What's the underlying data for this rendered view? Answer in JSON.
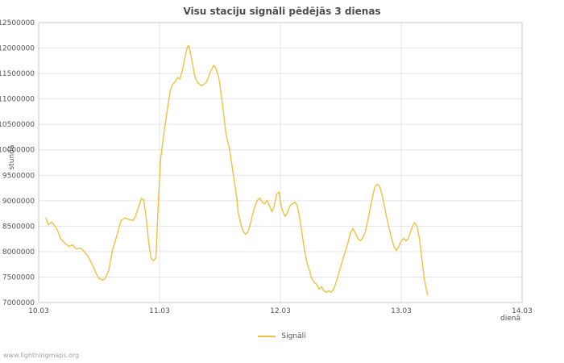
{
  "title": "Visu staciju signāli pēdējās 3 dienas",
  "watermark": "www.lightningmaps.org",
  "legend": {
    "label": "Signāli"
  },
  "chart_data": {
    "type": "line",
    "title": "Visu staciju signāli pēdējās 3 dienas",
    "xlabel": "dienā",
    "ylabel": "stundā",
    "xlim": [
      10.03,
      14.03
    ],
    "ylim": [
      7000000,
      12500000
    ],
    "y_tick_step": 500000,
    "x_ticks": [
      {
        "value": 10.03,
        "label": "10.03"
      },
      {
        "value": 11.03,
        "label": "11.03"
      },
      {
        "value": 12.03,
        "label": "12.03"
      },
      {
        "value": 13.03,
        "label": "13.03"
      },
      {
        "value": 14.03,
        "label": "14.03"
      }
    ],
    "grid": true,
    "legend_position": "bottom-center",
    "colors": {
      "line": "#edc240",
      "grid": "#e5e5e5",
      "border": "#c8c8c8",
      "text": "#545454"
    },
    "series": [
      {
        "name": "Signāli",
        "color": "#edc240",
        "points": [
          [
            10.09,
            8660000
          ],
          [
            10.11,
            8530000
          ],
          [
            10.14,
            8580000
          ],
          [
            10.18,
            8450000
          ],
          [
            10.21,
            8260000
          ],
          [
            10.24,
            8180000
          ],
          [
            10.28,
            8100000
          ],
          [
            10.31,
            8130000
          ],
          [
            10.34,
            8050000
          ],
          [
            10.38,
            8070000
          ],
          [
            10.41,
            7990000
          ],
          [
            10.44,
            7900000
          ],
          [
            10.48,
            7710000
          ],
          [
            10.51,
            7550000
          ],
          [
            10.53,
            7470000
          ],
          [
            10.56,
            7440000
          ],
          [
            10.58,
            7470000
          ],
          [
            10.61,
            7630000
          ],
          [
            10.64,
            8020000
          ],
          [
            10.68,
            8340000
          ],
          [
            10.71,
            8610000
          ],
          [
            10.74,
            8660000
          ],
          [
            10.78,
            8630000
          ],
          [
            10.81,
            8610000
          ],
          [
            10.83,
            8690000
          ],
          [
            10.86,
            8900000
          ],
          [
            10.88,
            9050000
          ],
          [
            10.9,
            9010000
          ],
          [
            10.92,
            8660000
          ],
          [
            10.94,
            8190000
          ],
          [
            10.96,
            7870000
          ],
          [
            10.98,
            7820000
          ],
          [
            11.0,
            7870000
          ],
          [
            11.02,
            8970000
          ],
          [
            11.04,
            9840000
          ],
          [
            11.07,
            10390000
          ],
          [
            11.1,
            10870000
          ],
          [
            11.12,
            11180000
          ],
          [
            11.14,
            11290000
          ],
          [
            11.16,
            11340000
          ],
          [
            11.18,
            11420000
          ],
          [
            11.2,
            11390000
          ],
          [
            11.22,
            11580000
          ],
          [
            11.24,
            11810000
          ],
          [
            11.26,
            12020000
          ],
          [
            11.27,
            12050000
          ],
          [
            11.28,
            11970000
          ],
          [
            11.3,
            11730000
          ],
          [
            11.32,
            11460000
          ],
          [
            11.34,
            11340000
          ],
          [
            11.36,
            11290000
          ],
          [
            11.38,
            11260000
          ],
          [
            11.4,
            11290000
          ],
          [
            11.42,
            11340000
          ],
          [
            11.44,
            11460000
          ],
          [
            11.46,
            11580000
          ],
          [
            11.48,
            11660000
          ],
          [
            11.5,
            11580000
          ],
          [
            11.52,
            11420000
          ],
          [
            11.54,
            11100000
          ],
          [
            11.56,
            10710000
          ],
          [
            11.58,
            10310000
          ],
          [
            11.61,
            10000000
          ],
          [
            11.63,
            9680000
          ],
          [
            11.65,
            9360000
          ],
          [
            11.67,
            9050000
          ],
          [
            11.68,
            8780000
          ],
          [
            11.7,
            8570000
          ],
          [
            11.72,
            8410000
          ],
          [
            11.74,
            8340000
          ],
          [
            11.76,
            8380000
          ],
          [
            11.78,
            8530000
          ],
          [
            11.8,
            8730000
          ],
          [
            11.82,
            8900000
          ],
          [
            11.84,
            9010000
          ],
          [
            11.86,
            9050000
          ],
          [
            11.88,
            8970000
          ],
          [
            11.9,
            8940000
          ],
          [
            11.92,
            9010000
          ],
          [
            11.94,
            8900000
          ],
          [
            11.96,
            8780000
          ],
          [
            11.98,
            8900000
          ],
          [
            12.0,
            9130000
          ],
          [
            12.02,
            9170000
          ],
          [
            12.03,
            8970000
          ],
          [
            12.05,
            8780000
          ],
          [
            12.07,
            8690000
          ],
          [
            12.09,
            8780000
          ],
          [
            12.11,
            8900000
          ],
          [
            12.13,
            8940000
          ],
          [
            12.15,
            8970000
          ],
          [
            12.17,
            8900000
          ],
          [
            12.19,
            8660000
          ],
          [
            12.21,
            8340000
          ],
          [
            12.23,
            8020000
          ],
          [
            12.25,
            7790000
          ],
          [
            12.27,
            7630000
          ],
          [
            12.29,
            7470000
          ],
          [
            12.31,
            7390000
          ],
          [
            12.33,
            7360000
          ],
          [
            12.35,
            7260000
          ],
          [
            12.37,
            7310000
          ],
          [
            12.39,
            7230000
          ],
          [
            12.41,
            7200000
          ],
          [
            12.43,
            7230000
          ],
          [
            12.45,
            7200000
          ],
          [
            12.47,
            7260000
          ],
          [
            12.49,
            7390000
          ],
          [
            12.51,
            7550000
          ],
          [
            12.53,
            7710000
          ],
          [
            12.55,
            7870000
          ],
          [
            12.57,
            8020000
          ],
          [
            12.59,
            8180000
          ],
          [
            12.61,
            8370000
          ],
          [
            12.63,
            8450000
          ],
          [
            12.65,
            8370000
          ],
          [
            12.67,
            8260000
          ],
          [
            12.69,
            8210000
          ],
          [
            12.71,
            8260000
          ],
          [
            12.73,
            8370000
          ],
          [
            12.75,
            8570000
          ],
          [
            12.77,
            8810000
          ],
          [
            12.79,
            9050000
          ],
          [
            12.81,
            9260000
          ],
          [
            12.83,
            9320000
          ],
          [
            12.85,
            9290000
          ],
          [
            12.87,
            9130000
          ],
          [
            12.89,
            8900000
          ],
          [
            12.91,
            8660000
          ],
          [
            12.93,
            8450000
          ],
          [
            12.95,
            8260000
          ],
          [
            12.97,
            8100000
          ],
          [
            12.99,
            8020000
          ],
          [
            13.01,
            8100000
          ],
          [
            13.03,
            8210000
          ],
          [
            13.05,
            8260000
          ],
          [
            13.07,
            8210000
          ],
          [
            13.09,
            8260000
          ],
          [
            13.11,
            8410000
          ],
          [
            13.13,
            8530000
          ],
          [
            13.14,
            8570000
          ],
          [
            13.16,
            8500000
          ],
          [
            13.18,
            8260000
          ],
          [
            13.2,
            7870000
          ],
          [
            13.22,
            7470000
          ],
          [
            13.24,
            7230000
          ],
          [
            13.25,
            7150000
          ]
        ]
      }
    ]
  }
}
